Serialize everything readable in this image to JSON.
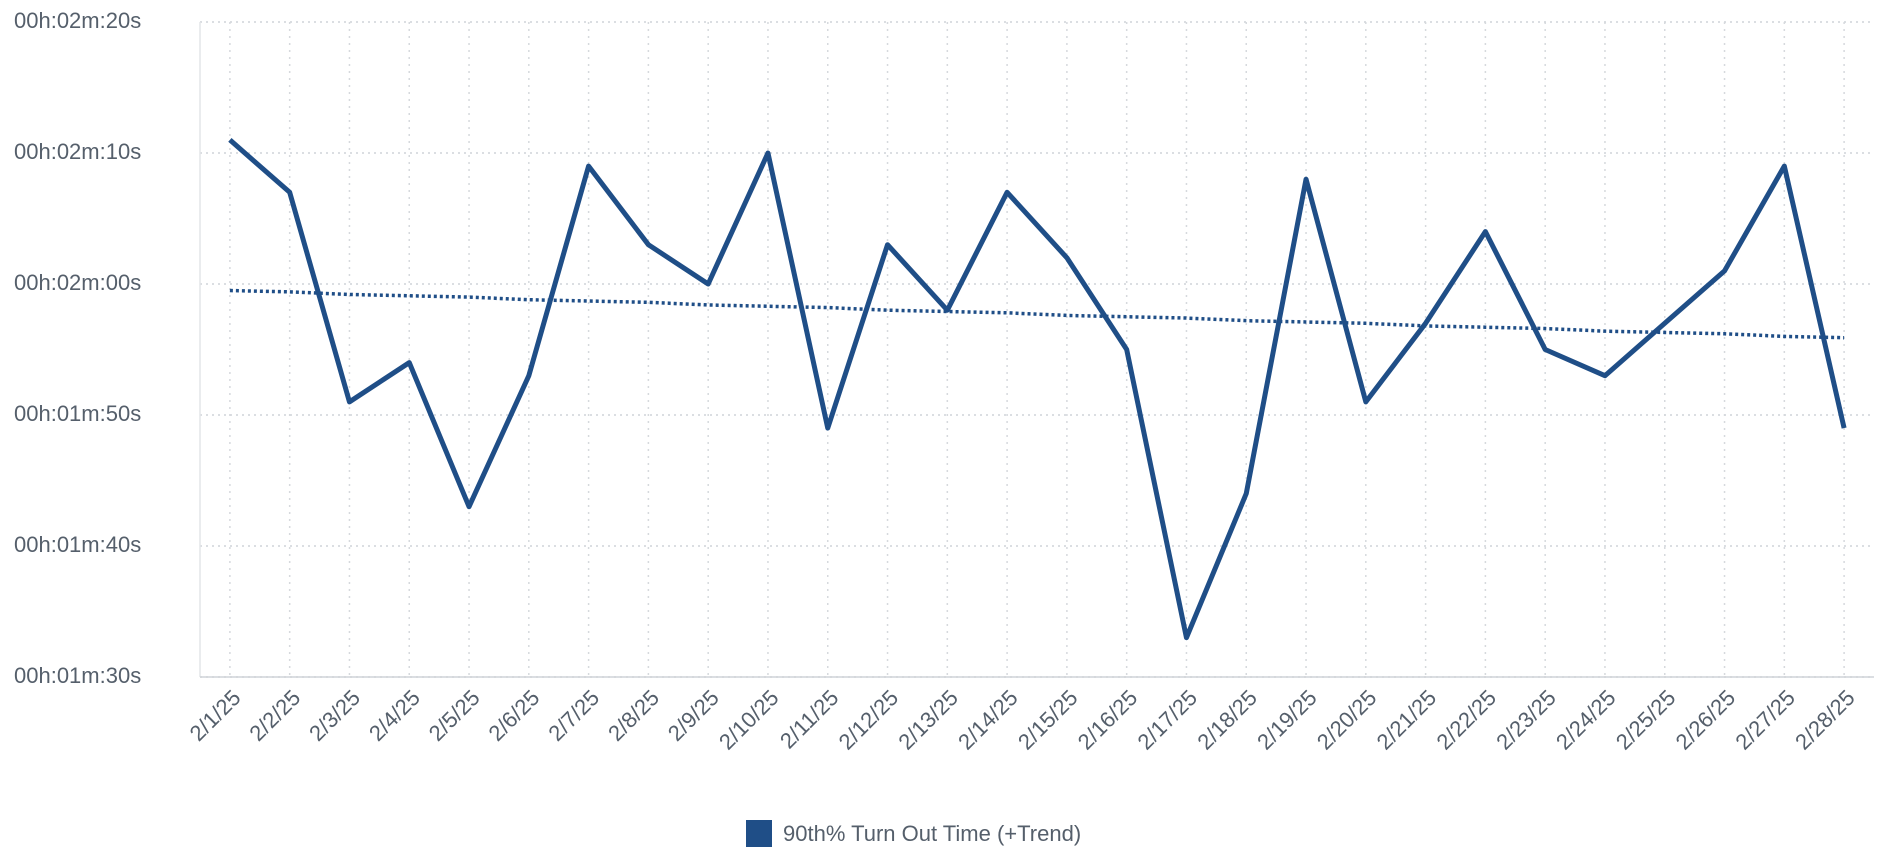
{
  "chart_data": {
    "type": "line",
    "categories": [
      "2/1/25",
      "2/2/25",
      "2/3/25",
      "2/4/25",
      "2/5/25",
      "2/6/25",
      "2/7/25",
      "2/8/25",
      "2/9/25",
      "2/10/25",
      "2/11/25",
      "2/12/25",
      "2/13/25",
      "2/14/25",
      "2/15/25",
      "2/16/25",
      "2/17/25",
      "2/18/25",
      "2/19/25",
      "2/20/25",
      "2/21/25",
      "2/22/25",
      "2/23/25",
      "2/24/25",
      "2/25/25",
      "2/26/25",
      "2/27/25",
      "2/28/25"
    ],
    "series": [
      {
        "name": "90th% Turn Out Time (+Trend)",
        "color": "#1f4e87",
        "values": [
          131,
          127,
          111,
          114,
          103,
          113,
          129,
          123,
          120,
          130,
          109,
          123,
          118,
          127,
          122,
          115,
          93,
          104,
          128,
          111,
          117,
          124,
          115,
          113,
          117,
          121,
          129,
          109
        ]
      }
    ],
    "trend": {
      "color": "#1f4e87",
      "values": [
        119.5,
        119.4,
        119.2,
        119.1,
        119.0,
        118.8,
        118.7,
        118.6,
        118.4,
        118.3,
        118.2,
        118.0,
        117.9,
        117.8,
        117.6,
        117.5,
        117.4,
        117.2,
        117.1,
        117.0,
        116.8,
        116.7,
        116.6,
        116.4,
        116.3,
        116.2,
        116.0,
        115.9
      ]
    },
    "ylim": [
      90,
      140
    ],
    "yticks": [
      {
        "value": 90,
        "label": "00h:01m:30s"
      },
      {
        "value": 100,
        "label": "00h:01m:40s"
      },
      {
        "value": 110,
        "label": "00h:01m:50s"
      },
      {
        "value": 120,
        "label": "00h:02m:00s"
      },
      {
        "value": 130,
        "label": "00h:02m:10s"
      },
      {
        "value": 140,
        "label": "00h:02m:20s"
      }
    ],
    "grid": true
  }
}
